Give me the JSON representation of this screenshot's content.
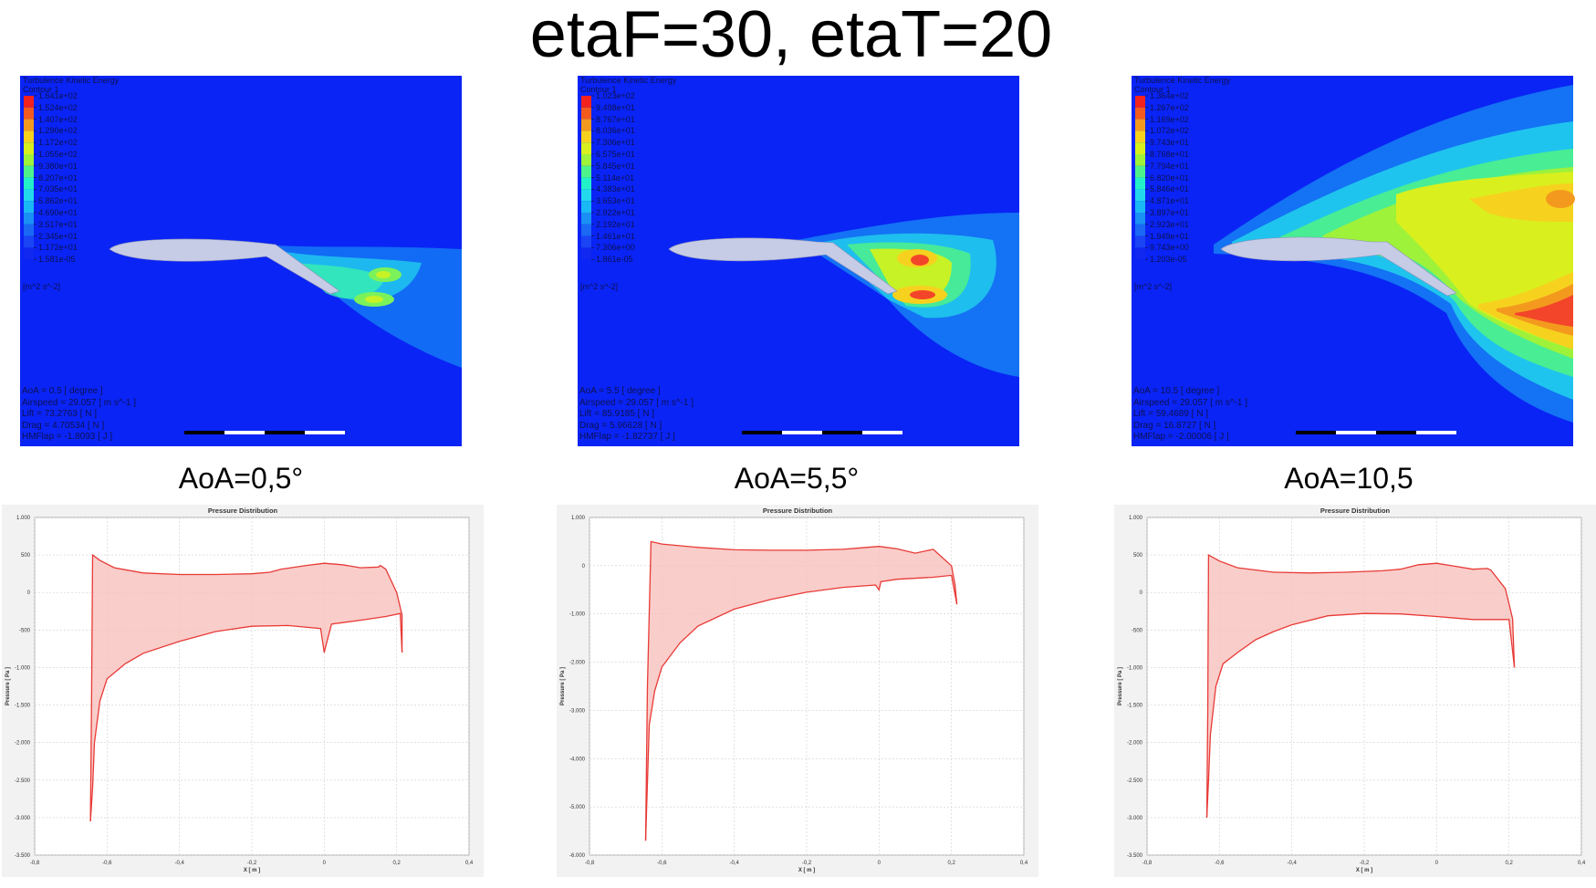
{
  "title": "etaF=30, etaT=20",
  "panels": [
    {
      "aoa_label": "AoA=0,5°",
      "cfd": {
        "legend_title": "Turbulence Kinetic Energy",
        "legend_subtitle": "Contour 1",
        "legend_values": [
          "1.641e+02",
          "1.524e+02",
          "1.407e+02",
          "1.290e+02",
          "1.172e+02",
          "1.055e+02",
          "9.380e+01",
          "8.207e+01",
          "7.035e+01",
          "5.862e+01",
          "4.690e+01",
          "3.517e+01",
          "2.345e+01",
          "1.172e+01",
          "1.581e-05"
        ],
        "unit": "[m^2 s^-2]",
        "info": [
          "AoA = 0.5 [ degree ]",
          "Airspeed = 29.057 [ m s^-1 ]",
          "Lift = 73.2763 [ N ]",
          "Drag = 4.70534 [ N ]",
          "HMFlap = -1.8093 [ J ]"
        ]
      }
    },
    {
      "aoa_label": "AoA=5,5°",
      "cfd": {
        "legend_title": "Turbulence Kinetic Energy",
        "legend_subtitle": "Contour 1",
        "legend_values": [
          "1.023e+02",
          "9.498e+01",
          "8.767e+01",
          "8.036e+01",
          "7.306e+01",
          "6.575e+01",
          "5.845e+01",
          "5.114e+01",
          "4.383e+01",
          "3.653e+01",
          "2.922e+01",
          "2.192e+01",
          "1.461e+01",
          "7.306e+00",
          "1.861e-05"
        ],
        "unit": "[m^2 s^-2]",
        "info": [
          "AoA = 5.5 [ degree ]",
          "Airspeed = 29.057 [ m s^-1 ]",
          "Lift = 85.9185 [ N ]",
          "Drag = 5.96628 [ N ]",
          "HMFlap = -1.82737 [ J ]"
        ]
      }
    },
    {
      "aoa_label": "AoA=10,5",
      "cfd": {
        "legend_title": "Turbulence Kinetic Energy",
        "legend_subtitle": "Contour 1",
        "legend_values": [
          "1.364e+02",
          "1.267e+02",
          "1.169e+02",
          "1.072e+02",
          "9.743e+01",
          "8.768e+01",
          "7.794e+01",
          "6.820e+01",
          "5.846e+01",
          "4.871e+01",
          "3.897e+01",
          "2.923e+01",
          "1.949e+01",
          "9.743e+00",
          "1.203e-05"
        ],
        "unit": "[m^2 s^-2]",
        "info": [
          "AoA = 10.5 [ degree ]",
          "Airspeed = 29.057 [ m s^-1 ]",
          "Lift = 59.4689 [ N ]",
          "Drag = 16.8727 [ N ]",
          "HMFlap = -2.00006 [ J ]"
        ]
      }
    }
  ],
  "chart_data": [
    {
      "type": "area",
      "title": "Pressure Distribution",
      "xlabel": "X [ m ]",
      "ylabel": "Pressure [ Pa ]",
      "xlim": [
        -0.8,
        0.4
      ],
      "ylim": [
        -3500,
        1000
      ],
      "x_ticks": [
        -0.8,
        -0.6,
        -0.4,
        -0.2,
        0,
        0.2,
        0.4
      ],
      "x_tick_labels": [
        "-0,8",
        "-0,6",
        "-0,4",
        "-0,2",
        "0",
        "0,2",
        "0,4"
      ],
      "y_ticks": [
        1000,
        500,
        0,
        -500,
        -1000,
        -1500,
        -2000,
        -2500,
        -3000,
        -3500
      ],
      "y_tick_labels": [
        "1.000",
        "500",
        "0",
        "-500",
        "-1.000",
        "-1.500",
        "-2.000",
        "-2.500",
        "-3.000",
        "-3.500"
      ],
      "upper": [
        [
          -0.646,
          -3050
        ],
        [
          -0.643,
          -1500
        ],
        [
          -0.64,
          500
        ],
        [
          -0.62,
          430
        ],
        [
          -0.58,
          330
        ],
        [
          -0.5,
          260
        ],
        [
          -0.4,
          240
        ],
        [
          -0.3,
          240
        ],
        [
          -0.2,
          250
        ],
        [
          -0.15,
          270
        ],
        [
          -0.12,
          310
        ],
        [
          -0.05,
          360
        ],
        [
          0.0,
          390
        ],
        [
          0.05,
          370
        ],
        [
          0.1,
          330
        ],
        [
          0.15,
          340
        ],
        [
          0.155,
          360
        ],
        [
          0.17,
          310
        ],
        [
          0.2,
          0
        ],
        [
          0.215,
          -300
        ],
        [
          0.215,
          -800
        ]
      ],
      "lower": [
        [
          -0.646,
          -3050
        ],
        [
          -0.64,
          -2600
        ],
        [
          -0.635,
          -2000
        ],
        [
          -0.62,
          -1450
        ],
        [
          -0.6,
          -1150
        ],
        [
          -0.55,
          -950
        ],
        [
          -0.5,
          -810
        ],
        [
          -0.4,
          -650
        ],
        [
          -0.3,
          -520
        ],
        [
          -0.2,
          -450
        ],
        [
          -0.1,
          -440
        ],
        [
          -0.01,
          -480
        ],
        [
          0.0,
          -800
        ],
        [
          0.005,
          -700
        ],
        [
          0.02,
          -420
        ],
        [
          0.1,
          -370
        ],
        [
          0.17,
          -320
        ],
        [
          0.21,
          -280
        ],
        [
          0.215,
          -800
        ]
      ]
    },
    {
      "type": "area",
      "title": "Pressure Distribution",
      "xlabel": "X [ m ]",
      "ylabel": "Pressure [ Pa ]",
      "xlim": [
        -0.8,
        0.4
      ],
      "ylim": [
        -6000,
        1000
      ],
      "x_ticks": [
        -0.8,
        -0.6,
        -0.4,
        -0.2,
        0,
        0.2,
        0.4
      ],
      "x_tick_labels": [
        "-0,8",
        "-0,6",
        "-0,4",
        "-0,2",
        "0",
        "0,2",
        "0,4"
      ],
      "y_ticks": [
        1000,
        0,
        -1000,
        -2000,
        -3000,
        -4000,
        -5000,
        -6000
      ],
      "y_tick_labels": [
        "1.000",
        "0",
        "-1.000",
        "-2.000",
        "-3.000",
        "-4.000",
        "-5.000",
        "-6.000"
      ],
      "upper": [
        [
          -0.645,
          -5700
        ],
        [
          -0.64,
          -2500
        ],
        [
          -0.63,
          500
        ],
        [
          -0.6,
          450
        ],
        [
          -0.5,
          380
        ],
        [
          -0.4,
          330
        ],
        [
          -0.3,
          320
        ],
        [
          -0.2,
          320
        ],
        [
          -0.1,
          340
        ],
        [
          -0.05,
          370
        ],
        [
          0.0,
          400
        ],
        [
          0.05,
          350
        ],
        [
          0.1,
          260
        ],
        [
          0.15,
          340
        ],
        [
          0.16,
          270
        ],
        [
          0.2,
          0
        ],
        [
          0.21,
          -400
        ],
        [
          0.215,
          -800
        ]
      ],
      "lower": [
        [
          -0.645,
          -5700
        ],
        [
          -0.64,
          -4500
        ],
        [
          -0.635,
          -3300
        ],
        [
          -0.62,
          -2600
        ],
        [
          -0.6,
          -2100
        ],
        [
          -0.55,
          -1600
        ],
        [
          -0.5,
          -1250
        ],
        [
          -0.4,
          -900
        ],
        [
          -0.3,
          -700
        ],
        [
          -0.2,
          -550
        ],
        [
          -0.1,
          -450
        ],
        [
          -0.01,
          -400
        ],
        [
          0.0,
          -500
        ],
        [
          0.005,
          -330
        ],
        [
          0.05,
          -280
        ],
        [
          0.15,
          -240
        ],
        [
          0.2,
          -200
        ],
        [
          0.215,
          -800
        ]
      ]
    },
    {
      "type": "area",
      "title": "Pressure Distribution",
      "xlabel": "X [ m ]",
      "ylabel": "Pressure [ Pa ]",
      "xlim": [
        -0.8,
        0.4
      ],
      "ylim": [
        -3500,
        1000
      ],
      "x_ticks": [
        -0.8,
        -0.6,
        -0.4,
        -0.2,
        0,
        0.2,
        0.4
      ],
      "x_tick_labels": [
        "-0,8",
        "-0,6",
        "-0,4",
        "-0,2",
        "0",
        "0,2",
        "0,4"
      ],
      "y_ticks": [
        1000,
        500,
        0,
        -500,
        -1000,
        -1500,
        -2000,
        -2500,
        -3000,
        -3500
      ],
      "y_tick_labels": [
        "1.000",
        "500",
        "0",
        "-500",
        "-1.000",
        "-1.500",
        "-2.000",
        "-2.500",
        "-3.000",
        "-3.500"
      ],
      "upper": [
        [
          -0.635,
          -3000
        ],
        [
          -0.632,
          -1500
        ],
        [
          -0.63,
          500
        ],
        [
          -0.6,
          420
        ],
        [
          -0.55,
          330
        ],
        [
          -0.45,
          270
        ],
        [
          -0.35,
          260
        ],
        [
          -0.25,
          270
        ],
        [
          -0.15,
          290
        ],
        [
          -0.1,
          310
        ],
        [
          -0.05,
          370
        ],
        [
          0.0,
          390
        ],
        [
          0.05,
          350
        ],
        [
          0.1,
          310
        ],
        [
          0.14,
          320
        ],
        [
          0.15,
          300
        ],
        [
          0.19,
          50
        ],
        [
          0.21,
          -350
        ],
        [
          0.215,
          -1000
        ]
      ],
      "lower": [
        [
          -0.635,
          -3000
        ],
        [
          -0.63,
          -2500
        ],
        [
          -0.625,
          -1900
        ],
        [
          -0.61,
          -1250
        ],
        [
          -0.59,
          -950
        ],
        [
          -0.55,
          -800
        ],
        [
          -0.5,
          -630
        ],
        [
          -0.45,
          -520
        ],
        [
          -0.4,
          -430
        ],
        [
          -0.3,
          -310
        ],
        [
          -0.2,
          -280
        ],
        [
          -0.1,
          -285
        ],
        [
          0.0,
          -320
        ],
        [
          0.05,
          -340
        ],
        [
          0.1,
          -360
        ],
        [
          0.2,
          -360
        ],
        [
          0.215,
          -1000
        ]
      ]
    }
  ],
  "colors": {
    "background_blue": "#0a24f5",
    "airfoil": "#c6cbe6",
    "curve": "#e83a36",
    "fill": "#f7c0bd"
  }
}
